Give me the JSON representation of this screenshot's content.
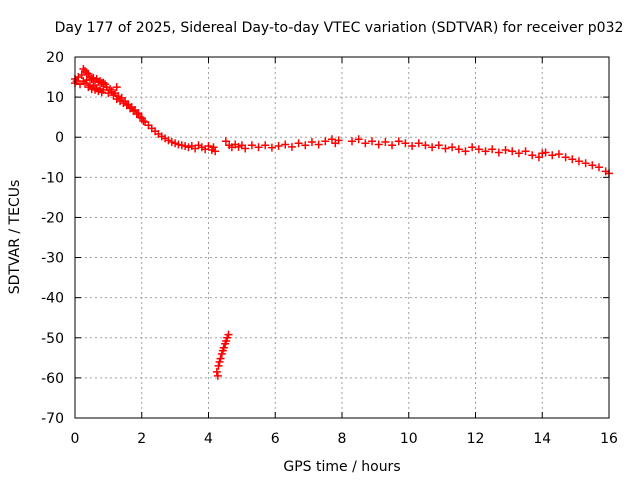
{
  "chart_data": {
    "type": "scatter",
    "title": "Day 177 of 2025, Sidereal Day-to-day VTEC variation (SDTVAR) for receiver p032",
    "xlabel": "GPS time / hours",
    "ylabel": "SDTVAR / TECUs",
    "xlim": [
      0,
      16
    ],
    "ylim": [
      -70,
      20
    ],
    "xticks": [
      0,
      2,
      4,
      6,
      8,
      10,
      12,
      14,
      16
    ],
    "yticks": [
      20,
      10,
      0,
      -10,
      -20,
      -30,
      -40,
      -50,
      -60,
      -70
    ],
    "grid": true,
    "marker": "+",
    "color": "#ff0000",
    "series": [
      {
        "name": "SDTVAR",
        "points": [
          [
            0.0,
            14.5
          ],
          [
            0.0,
            13.5
          ],
          [
            0.05,
            14.0
          ],
          [
            0.1,
            15.0
          ],
          [
            0.15,
            13.2
          ],
          [
            0.2,
            15.5
          ],
          [
            0.25,
            14.0
          ],
          [
            0.25,
            17.0
          ],
          [
            0.3,
            16.5
          ],
          [
            0.3,
            13.5
          ],
          [
            0.35,
            16.0
          ],
          [
            0.35,
            14.2
          ],
          [
            0.4,
            15.8
          ],
          [
            0.4,
            12.5
          ],
          [
            0.45,
            15.0
          ],
          [
            0.45,
            13.0
          ],
          [
            0.5,
            14.5
          ],
          [
            0.5,
            12.0
          ],
          [
            0.55,
            14.8
          ],
          [
            0.55,
            12.8
          ],
          [
            0.6,
            14.0
          ],
          [
            0.6,
            11.8
          ],
          [
            0.65,
            14.5
          ],
          [
            0.65,
            12.2
          ],
          [
            0.7,
            13.8
          ],
          [
            0.7,
            11.5
          ],
          [
            0.75,
            14.0
          ],
          [
            0.75,
            12.0
          ],
          [
            0.8,
            13.5
          ],
          [
            0.8,
            11.2
          ],
          [
            0.85,
            13.6
          ],
          [
            0.85,
            11.8
          ],
          [
            0.9,
            13.2
          ],
          [
            0.95,
            12.5
          ],
          [
            1.0,
            11.0
          ],
          [
            1.05,
            12.0
          ],
          [
            1.1,
            11.5
          ],
          [
            1.15,
            10.5
          ],
          [
            1.2,
            11.0
          ],
          [
            1.25,
            12.5
          ],
          [
            1.25,
            9.5
          ],
          [
            1.3,
            10.2
          ],
          [
            1.35,
            9.0
          ],
          [
            1.4,
            9.8
          ],
          [
            1.45,
            8.5
          ],
          [
            1.5,
            9.0
          ],
          [
            1.55,
            8.0
          ],
          [
            1.6,
            8.2
          ],
          [
            1.65,
            7.2
          ],
          [
            1.7,
            7.5
          ],
          [
            1.75,
            6.5
          ],
          [
            1.8,
            6.8
          ],
          [
            1.85,
            5.8
          ],
          [
            1.9,
            6.0
          ],
          [
            1.95,
            5.0
          ],
          [
            2.0,
            4.8
          ],
          [
            2.05,
            4.0
          ],
          [
            2.1,
            3.8
          ],
          [
            2.2,
            3.0
          ],
          [
            2.3,
            2.2
          ],
          [
            2.4,
            1.5
          ],
          [
            2.5,
            0.8
          ],
          [
            2.6,
            0.2
          ],
          [
            2.7,
            -0.3
          ],
          [
            2.8,
            -0.8
          ],
          [
            2.9,
            -1.2
          ],
          [
            3.0,
            -1.5
          ],
          [
            3.1,
            -1.8
          ],
          [
            3.2,
            -2.0
          ],
          [
            3.3,
            -2.2
          ],
          [
            3.4,
            -2.5
          ],
          [
            3.5,
            -2.2
          ],
          [
            3.6,
            -2.8
          ],
          [
            3.7,
            -2.0
          ],
          [
            3.8,
            -2.5
          ],
          [
            3.9,
            -3.0
          ],
          [
            4.0,
            -2.2
          ],
          [
            4.1,
            -3.2
          ],
          [
            4.15,
            -2.5
          ],
          [
            4.2,
            -3.5
          ],
          [
            4.25,
            -58.5
          ],
          [
            4.28,
            -59.5
          ],
          [
            4.3,
            -57.0
          ],
          [
            4.33,
            -56.0
          ],
          [
            4.36,
            -55.2
          ],
          [
            4.4,
            -54.0
          ],
          [
            4.43,
            -53.2
          ],
          [
            4.46,
            -52.5
          ],
          [
            4.5,
            -51.5
          ],
          [
            4.52,
            -1.0
          ],
          [
            4.53,
            -50.8
          ],
          [
            4.56,
            -50.0
          ],
          [
            4.6,
            -49.2
          ],
          [
            4.62,
            -2.0
          ],
          [
            4.7,
            -2.5
          ],
          [
            4.8,
            -1.8
          ],
          [
            4.9,
            -2.4
          ],
          [
            5.0,
            -2.0
          ],
          [
            5.1,
            -2.8
          ],
          [
            5.3,
            -2.0
          ],
          [
            5.5,
            -2.5
          ],
          [
            5.7,
            -2.0
          ],
          [
            5.9,
            -2.6
          ],
          [
            6.1,
            -2.2
          ],
          [
            6.3,
            -1.8
          ],
          [
            6.5,
            -2.4
          ],
          [
            6.7,
            -1.5
          ],
          [
            6.9,
            -2.0
          ],
          [
            7.1,
            -1.2
          ],
          [
            7.3,
            -1.8
          ],
          [
            7.5,
            -1.0
          ],
          [
            7.7,
            -0.5
          ],
          [
            7.8,
            -1.5
          ],
          [
            7.9,
            -0.8
          ],
          [
            8.3,
            -1.0
          ],
          [
            8.5,
            -0.5
          ],
          [
            8.7,
            -1.5
          ],
          [
            8.9,
            -1.0
          ],
          [
            9.1,
            -1.8
          ],
          [
            9.3,
            -1.2
          ],
          [
            9.5,
            -2.0
          ],
          [
            9.7,
            -1.0
          ],
          [
            9.9,
            -1.5
          ],
          [
            10.1,
            -2.2
          ],
          [
            10.3,
            -1.5
          ],
          [
            10.5,
            -2.0
          ],
          [
            10.7,
            -2.5
          ],
          [
            10.9,
            -2.0
          ],
          [
            11.1,
            -2.8
          ],
          [
            11.3,
            -2.5
          ],
          [
            11.5,
            -3.0
          ],
          [
            11.7,
            -3.5
          ],
          [
            11.9,
            -2.5
          ],
          [
            12.1,
            -3.0
          ],
          [
            12.3,
            -3.5
          ],
          [
            12.5,
            -3.0
          ],
          [
            12.7,
            -3.8
          ],
          [
            12.9,
            -3.2
          ],
          [
            13.1,
            -3.5
          ],
          [
            13.3,
            -4.0
          ],
          [
            13.5,
            -3.5
          ],
          [
            13.7,
            -4.5
          ],
          [
            13.9,
            -5.0
          ],
          [
            14.0,
            -4.0
          ],
          [
            14.1,
            -3.8
          ],
          [
            14.3,
            -4.5
          ],
          [
            14.5,
            -4.2
          ],
          [
            14.7,
            -5.0
          ],
          [
            14.9,
            -5.5
          ],
          [
            15.1,
            -6.0
          ],
          [
            15.3,
            -6.5
          ],
          [
            15.5,
            -7.0
          ],
          [
            15.7,
            -7.5
          ],
          [
            15.9,
            -8.5
          ],
          [
            16.0,
            -9.0
          ]
        ]
      }
    ]
  }
}
